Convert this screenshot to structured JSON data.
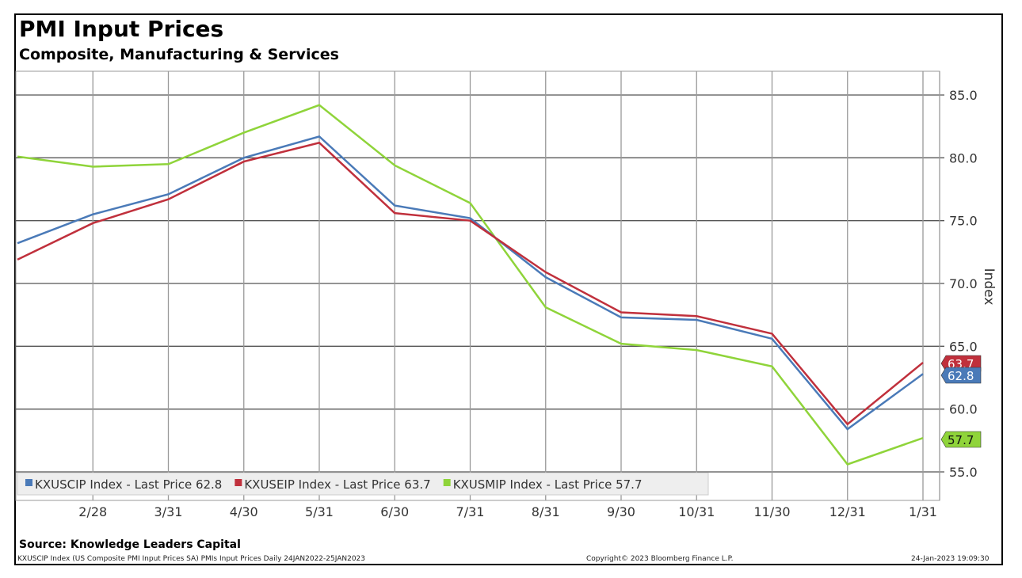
{
  "chart_data": {
    "type": "line",
    "title": "PMI Input Prices",
    "subtitle": "Composite, Manufacturing & Services",
    "ylabel": "Index",
    "ylim": [
      53,
      87
    ],
    "yticks": [
      "55.0",
      "60.0",
      "65.0",
      "70.0",
      "75.0",
      "80.0",
      "85.0"
    ],
    "ytick_values": [
      55,
      60,
      65,
      70,
      75,
      80,
      85
    ],
    "xticks": [
      "2/28",
      "3/31",
      "4/30",
      "5/31",
      "6/30",
      "7/31",
      "8/31",
      "9/30",
      "10/31",
      "11/30",
      "12/31",
      "1/31"
    ],
    "x": [
      "1/31",
      "2/28",
      "3/31",
      "4/30",
      "5/31",
      "6/30",
      "7/31",
      "8/31",
      "9/30",
      "10/31",
      "11/30",
      "12/31",
      "1/31"
    ],
    "grid": true,
    "legend_position": "bottom-left",
    "series": [
      {
        "name": "KXUSCIP Index - Last Price 62.8",
        "last": "62.8",
        "color": "#4a7ab8",
        "values": [
          73.2,
          75.5,
          77.1,
          80.0,
          81.7,
          76.2,
          75.2,
          70.5,
          67.3,
          67.1,
          65.6,
          58.4,
          62.8
        ]
      },
      {
        "name": "KXUSEIP Index - Last Price 63.7",
        "last": "63.7",
        "color": "#c0303c",
        "values": [
          71.9,
          74.8,
          76.7,
          79.7,
          81.2,
          75.6,
          75.0,
          70.9,
          67.7,
          67.4,
          66.0,
          58.8,
          63.7
        ]
      },
      {
        "name": "KXUSMIP Index - Last Price 57.7",
        "last": "57.7",
        "color": "#8fd43a",
        "values": [
          80.1,
          79.3,
          79.5,
          82.0,
          84.2,
          79.4,
          76.4,
          68.1,
          65.2,
          64.7,
          63.4,
          55.6,
          57.7
        ]
      }
    ]
  },
  "source": "Source: Knowledge Leaders Capital",
  "footer": {
    "left": "KXUSCIP Index (US Composite PMI Input Prices SA) PMIs Input Prices  Daily 24JAN2022-25JAN2023",
    "center": "Copyright© 2023 Bloomberg Finance L.P.",
    "right": "24-Jan-2023 19:09:30"
  }
}
